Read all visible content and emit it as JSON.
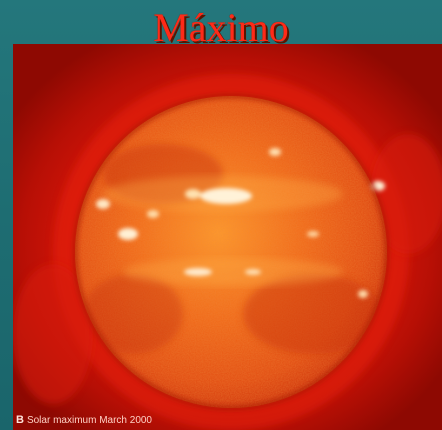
{
  "slide": {
    "title": "Máximo"
  },
  "figure": {
    "panel_letter": "B",
    "caption": "Solar maximum March 2000",
    "colors": {
      "background": "#1f6f74",
      "title": "#ff2a18",
      "sun_core": "#ff8a24",
      "corona": "#c01206"
    }
  }
}
